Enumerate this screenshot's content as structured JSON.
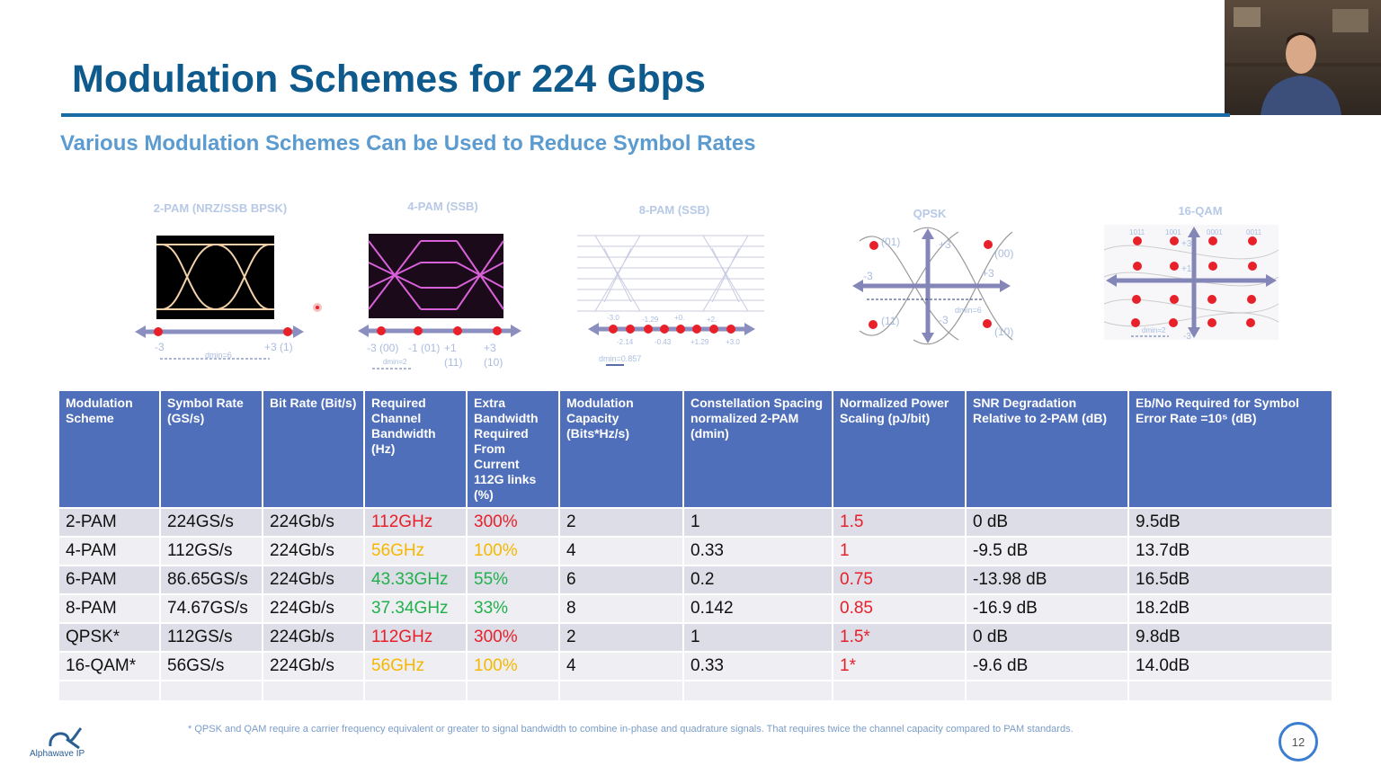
{
  "slide": {
    "title": "Modulation Schemes for 224 Gbps",
    "subtitle": "Various Modulation Schemes Can be Used to Reduce Symbol Rates",
    "page_number": "12",
    "logo": "Alphawave IP",
    "footnote": "* QPSK and QAM require a carrier frequency equivalent or greater to signal bandwidth to combine in-phase and quadrature signals. That requires twice the channel capacity compared to PAM standards."
  },
  "diagrams": [
    {
      "title": "2-PAM (NRZ/SSB BPSK)",
      "labels": [
        "-3",
        "+3 (1)",
        "dmin=6"
      ]
    },
    {
      "title": "4-PAM (SSB)",
      "labels": [
        "-3 (00)",
        "-1 (01)",
        "+1",
        "(11)",
        "+3",
        "(10)",
        "dmin=2"
      ]
    },
    {
      "title": "8-PAM (SSB)",
      "labels": [
        "-3.0",
        "-1.29",
        "+0.",
        "+2.",
        "-2.14",
        "-0.43",
        "+1.29",
        "+3.0",
        "dmin=0.857"
      ]
    },
    {
      "title": "QPSK",
      "labels": [
        "(01)",
        "+3",
        "(00)",
        "-3",
        "+3",
        "(11)",
        "-3",
        "(10)",
        "dmin=6"
      ]
    },
    {
      "title": "16-QAM",
      "labels": [
        "1011",
        "1001",
        "0001",
        "0011",
        "+3",
        "+1",
        "-3",
        "dmin=2"
      ]
    }
  ],
  "colors": {
    "red": "#e8202a",
    "yellow": "#f5b800",
    "green": "#22b04b",
    "header": "#4f6fba"
  },
  "table": {
    "headers": [
      "Modulation Scheme",
      "Symbol Rate (GS/s)",
      "Bit Rate (Bit/s)",
      "Required Channel Bandwidth (Hz)",
      "Extra Bandwidth Required From Current 112G links (%)",
      "Modulation Capacity (Bits*Hz/s)",
      "Constellation Spacing normalized 2-PAM (dmin)",
      "Normalized Power Scaling (pJ/bit)",
      "SNR Degradation Relative to  2-PAM (dB)",
      "Eb/No Required for Symbol Error Rate =10⁵ (dB)"
    ],
    "rows": [
      [
        "2-PAM",
        "224GS/s",
        "224Gb/s",
        "112GHz",
        "300%",
        "2",
        "1",
        "1.5",
        "0 dB",
        "9.5dB"
      ],
      [
        "4-PAM",
        "112GS/s",
        "224Gb/s",
        "56GHz",
        "100%",
        "4",
        "0.33",
        "1",
        "-9.5 dB",
        "13.7dB"
      ],
      [
        "6-PAM",
        "86.65GS/s",
        "224Gb/s",
        "43.33GHz",
        "55%",
        "6",
        "0.2",
        "0.75",
        "-13.98 dB",
        "16.5dB"
      ],
      [
        "8-PAM",
        "74.67GS/s",
        "224Gb/s",
        "37.34GHz",
        "33%",
        "8",
        "0.142",
        "0.85",
        "-16.9 dB",
        "18.2dB"
      ],
      [
        "QPSK*",
        "112GS/s",
        "224Gb/s",
        "112GHz",
        "300%",
        "2",
        "1",
        "1.5*",
        "0 dB",
        "9.8dB"
      ],
      [
        "16-QAM*",
        "56GS/s",
        "224Gb/s",
        "56GHz",
        "100%",
        "4",
        "0.33",
        "1*",
        "-9.6 dB",
        "14.0dB"
      ]
    ],
    "cell_colors": [
      [
        "",
        "",
        "",
        "red",
        "red",
        "",
        "",
        "red",
        "",
        ""
      ],
      [
        "",
        "",
        "",
        "yellow",
        "yellow",
        "",
        "",
        "red",
        "",
        ""
      ],
      [
        "",
        "",
        "",
        "green",
        "green",
        "",
        "",
        "red",
        "",
        ""
      ],
      [
        "",
        "",
        "",
        "green",
        "green",
        "",
        "",
        "red",
        "",
        ""
      ],
      [
        "",
        "",
        "",
        "red",
        "red",
        "",
        "",
        "red",
        "",
        ""
      ],
      [
        "",
        "",
        "",
        "yellow",
        "yellow",
        "",
        "",
        "red",
        "",
        ""
      ]
    ]
  }
}
